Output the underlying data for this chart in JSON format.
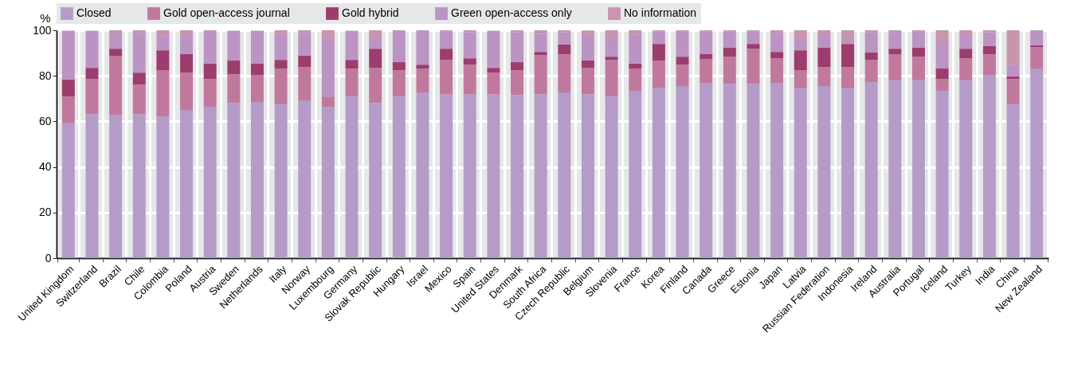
{
  "chart_data": {
    "type": "bar",
    "stacked": true,
    "ylabel": "%",
    "ylim": [
      0,
      100
    ],
    "yticks": [
      0,
      20,
      40,
      60,
      80,
      100
    ],
    "grid": true,
    "legend": "top",
    "categories": [
      "United Kingdom",
      "Switzerland",
      "Brazil",
      "Chile",
      "Colombia",
      "Poland",
      "Austria",
      "Sweden",
      "Netherlands",
      "Italy",
      "Norway",
      "Luxembourg",
      "Germany",
      "Slovak Republic",
      "Hungary",
      "Israel",
      "Mexico",
      "Spain",
      "United States",
      "Denmark",
      "South Africa",
      "Czech Republic",
      "Belgium",
      "Slovenia",
      "France",
      "Korea",
      "Finland",
      "Canada",
      "Greece",
      "Estonia",
      "Japan",
      "Latvia",
      "Russian Federation",
      "Indonesia",
      "Ireland",
      "Australia",
      "Portugal",
      "Iceland",
      "Turkey",
      "India",
      "China",
      "New Zealand"
    ],
    "series": [
      {
        "name": "Closed",
        "color": "#b59cc8",
        "values": [
          59.4,
          63.2,
          62.9,
          63.2,
          62.2,
          65.0,
          66.4,
          68.1,
          68.5,
          67.4,
          69.2,
          66.4,
          70.9,
          68.1,
          70.9,
          72.7,
          71.9,
          71.9,
          71.9,
          71.6,
          71.9,
          72.7,
          71.9,
          70.9,
          73.4,
          74.8,
          75.5,
          76.9,
          76.5,
          76.5,
          76.9,
          74.4,
          75.5,
          74.4,
          77.2,
          77.9,
          78.3,
          73.4,
          77.9,
          80.4,
          67.4,
          83.2
        ]
      },
      {
        "name": "Gold open-access journal",
        "color": "#c0799d",
        "values": [
          11.5,
          15.4,
          25.9,
          13.0,
          20.3,
          16.4,
          12.2,
          12.6,
          11.9,
          15.8,
          14.7,
          4.5,
          12.3,
          15.4,
          11.6,
          10.5,
          15.1,
          13.0,
          9.5,
          10.9,
          17.2,
          16.8,
          11.6,
          16.1,
          9.8,
          11.9,
          9.4,
          10.5,
          11.9,
          15.4,
          10.8,
          8.1,
          8.4,
          9.5,
          9.8,
          11.6,
          10.1,
          5.2,
          9.8,
          9.1,
          11.2,
          9.4
        ]
      },
      {
        "name": "Gold hybrid",
        "color": "#9c3d6e",
        "values": [
          7.4,
          4.9,
          3.1,
          5.2,
          8.7,
          8.1,
          6.7,
          6.0,
          4.9,
          3.8,
          4.9,
          null,
          3.8,
          8.4,
          3.5,
          1.7,
          4.9,
          2.8,
          2.1,
          3.5,
          1.4,
          4.2,
          3.2,
          1.4,
          2.1,
          7.3,
          3.5,
          2.1,
          3.9,
          2.1,
          2.8,
          8.7,
          8.4,
          10.1,
          3.2,
          2.4,
          3.9,
          4.6,
          4.2,
          3.5,
          1.1,
          0.8
        ]
      },
      {
        "name": "Green open-access only",
        "color": "#bb94c4",
        "values": [
          21.5,
          16.3,
          6.7,
          17.5,
          6.3,
          8.4,
          14.0,
          13.1,
          14.5,
          11.2,
          10.1,
          24.9,
          12.8,
          4.6,
          13.3,
          15.1,
          7.7,
          11.4,
          16.3,
          13.2,
          7.9,
          5.5,
          11.2,
          8.1,
          12.9,
          5.6,
          11.2,
          10.1,
          7.3,
          5.6,
          8.4,
          4.9,
          5.6,
          2.1,
          9.0,
          7.0,
          7.3,
          11.2,
          6.0,
          6.1,
          5.2,
          6.6
        ]
      },
      {
        "name": "No information",
        "color": "#c994ad",
        "values": [
          null,
          null,
          1.4,
          1.1,
          2.5,
          2.1,
          0.7,
          null,
          null,
          1.8,
          1.1,
          4.2,
          null,
          3.5,
          0.7,
          null,
          0.4,
          0.9,
          null,
          0.8,
          1.6,
          0.8,
          2.0,
          3.5,
          1.8,
          0.4,
          0.4,
          0.4,
          0.4,
          0.4,
          1.1,
          3.9,
          2.1,
          3.9,
          0.8,
          1.1,
          0.4,
          5.6,
          2.1,
          0.9,
          15.1,
          null
        ]
      }
    ]
  }
}
